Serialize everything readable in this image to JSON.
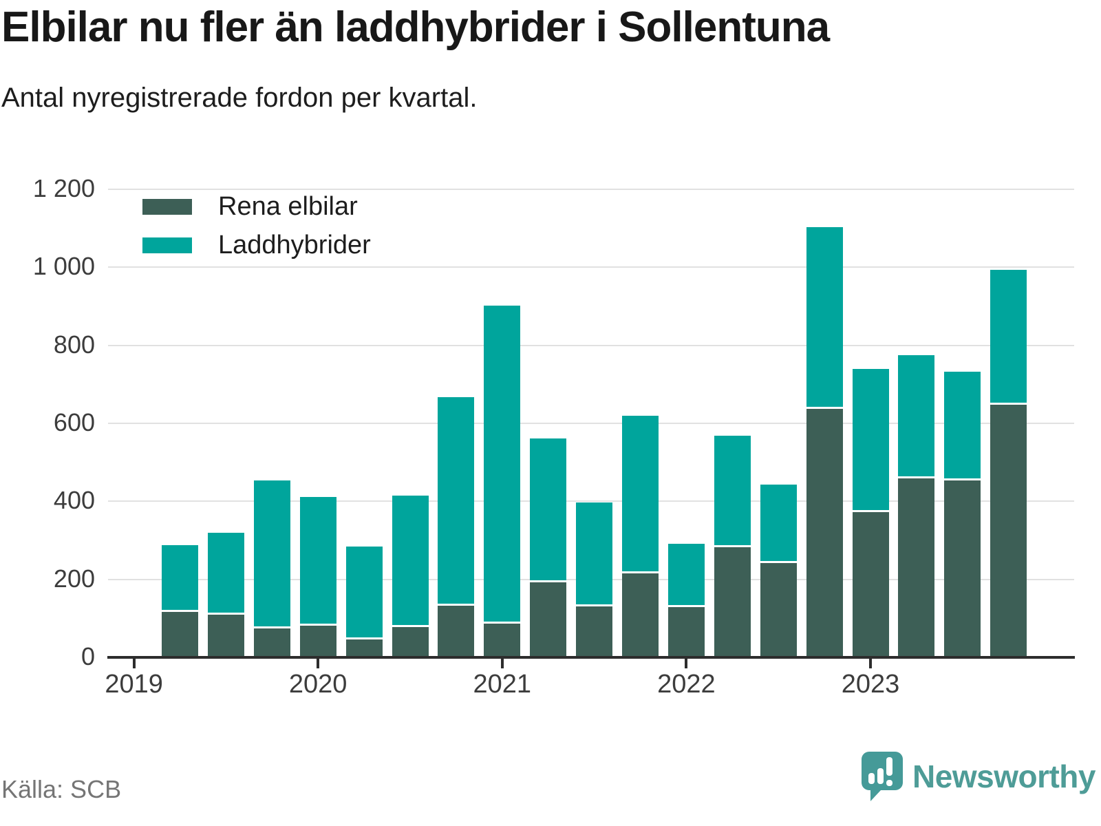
{
  "header": {
    "title": "Elbilar nu fler än laddhybrider i Sollentuna",
    "subtitle": "Antal nyregistrerade fordon per kvartal."
  },
  "legend": {
    "items": [
      {
        "label": "Rena elbilar"
      },
      {
        "label": "Laddhybrider"
      }
    ]
  },
  "chart_data": {
    "type": "bar",
    "stacked": true,
    "title": "Elbilar nu fler än laddhybrider i Sollentuna",
    "subtitle": "Antal nyregistrerade fordon per kvartal.",
    "xlabel": "",
    "ylabel": "",
    "ylim": [
      0,
      1200
    ],
    "grid": "horizontal",
    "legend_position": "top-left",
    "categories": [
      "2019 Q2",
      "2019 Q3",
      "2019 Q4",
      "2020 Q1",
      "2020 Q2",
      "2020 Q3",
      "2020 Q4",
      "2021 Q1",
      "2021 Q2",
      "2021 Q3",
      "2021 Q4",
      "2022 Q1",
      "2022 Q2",
      "2022 Q3",
      "2022 Q4",
      "2023 Q1",
      "2023 Q2",
      "2023 Q3",
      "2023 Q4"
    ],
    "series": [
      {
        "name": "Rena elbilar",
        "color": "#3d5f56",
        "values": [
          117,
          110,
          74,
          81,
          45,
          78,
          132,
          87,
          193,
          130,
          216,
          128,
          282,
          241,
          637,
          372,
          458,
          454,
          647
        ]
      },
      {
        "name": "Laddhybrider",
        "color": "#00a59c",
        "values": [
          170,
          210,
          380,
          330,
          239,
          337,
          535,
          815,
          368,
          267,
          404,
          164,
          287,
          201,
          465,
          367,
          316,
          279,
          347
        ]
      }
    ],
    "stack_totals": [
      287,
      320,
      454,
      411,
      284,
      415,
      667,
      902,
      561,
      397,
      620,
      292,
      569,
      442,
      1102,
      739,
      774,
      733,
      994
    ],
    "y_ticks": [
      {
        "value": 0,
        "label": "0"
      },
      {
        "value": 200,
        "label": "200"
      },
      {
        "value": 400,
        "label": "400"
      },
      {
        "value": 600,
        "label": "600"
      },
      {
        "value": 800,
        "label": "800"
      },
      {
        "value": 1000,
        "label": "1 000"
      },
      {
        "value": 1200,
        "label": "1 200"
      }
    ],
    "x_ticks": [
      {
        "label": "2019",
        "category_index": -1
      },
      {
        "label": "2020",
        "category_index": 3
      },
      {
        "label": "2021",
        "category_index": 7
      },
      {
        "label": "2022",
        "category_index": 11
      },
      {
        "label": "2023",
        "category_index": 15
      }
    ]
  },
  "footer": {
    "source": "Källa: SCB",
    "brand": "Newsworthy"
  },
  "colors": {
    "series_rena": "#3d5f56",
    "series_ladd": "#00a59c",
    "gridline": "#e1e1e1",
    "axis": "#2d2d2d",
    "text": "#1d1d1d",
    "muted_text": "#757575",
    "brand_teal": "#4e9c97"
  }
}
